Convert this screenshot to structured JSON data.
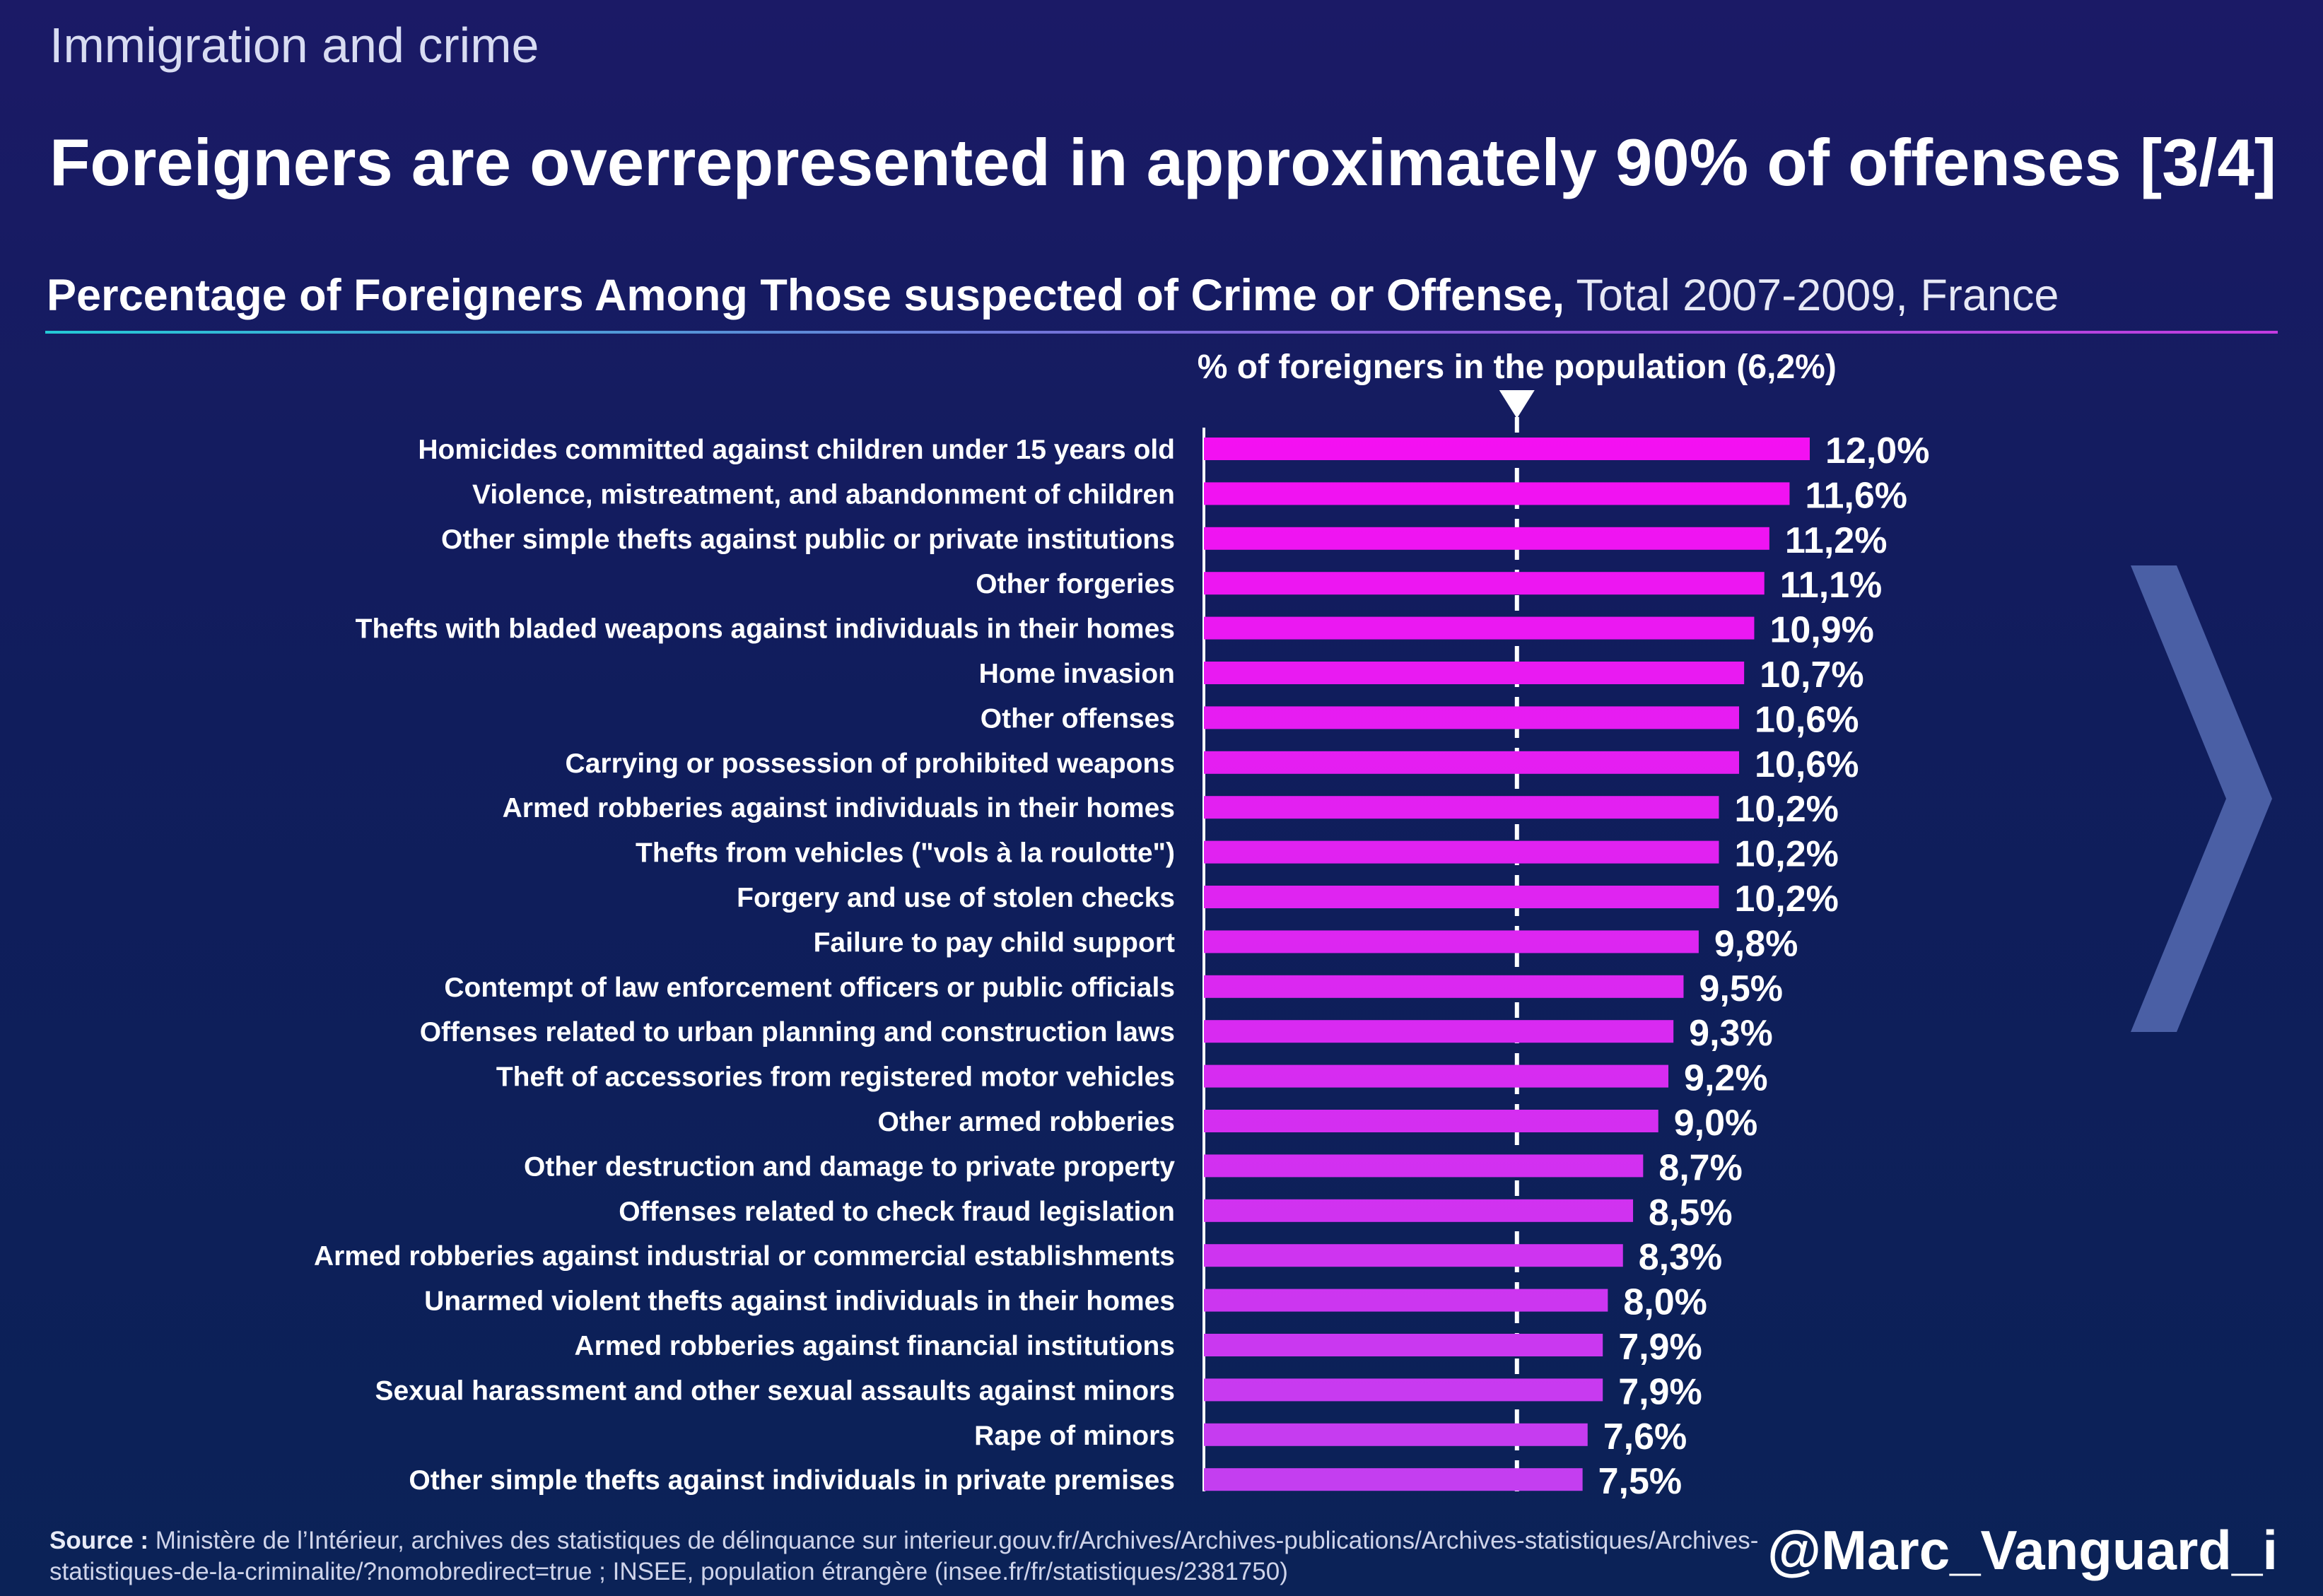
{
  "header": {
    "topic": "Immigration and crime",
    "headline": "Foreigners are overrepresented in approximately 90% of offenses [3/4]",
    "subtitle_bold": "Percentage of Foreigners Among Those suspected of Crime or Offense,",
    "subtitle_light": "Total 2007-2009, France"
  },
  "footer": {
    "source_label": "Source :",
    "source_text": "Ministère de l’Intérieur, archives des statistiques de délinquance sur interieur.gouv.fr/Archives/Archives-publications/Archives-statistiques/Archives-statistiques-de-la-criminalite/?nomobredirect=true ; INSEE, population étrangère (insee.fr/fr/statistiques/2381750)",
    "handle": "@Marc_Vanguard_i"
  },
  "icons": {
    "next": "chevron-right-icon",
    "marker": "triangle-down-icon"
  },
  "colors": {
    "bar_top": "#f40ff2",
    "bar_bottom": "#c43ef0",
    "arrow": "#4a5fa5"
  },
  "chart_data": {
    "type": "bar",
    "orientation": "horizontal",
    "unit": "%",
    "xlim": [
      0,
      12.0
    ],
    "reference": {
      "label": "% of foreigners in the population (6,2%)",
      "value": 6.2
    },
    "categories": [
      "Homicides committed against children under 15 years old",
      "Violence, mistreatment, and abandonment of children",
      "Other simple thefts against public or private institutions",
      "Other forgeries",
      "Thefts with bladed weapons against individuals in their homes",
      "Home invasion",
      "Other offenses",
      "Carrying or possession of prohibited weapons",
      "Armed robberies against individuals in their homes",
      "Thefts from vehicles (\"vols à la roulotte\")",
      "Forgery and use of stolen checks",
      "Failure to pay child support",
      "Contempt of law enforcement officers or public officials",
      "Offenses related to urban planning and construction laws",
      "Theft of accessories from registered motor vehicles",
      "Other armed robberies",
      "Other destruction and damage to private property",
      "Offenses related to check fraud legislation",
      "Armed robberies against industrial or commercial establishments",
      "Unarmed violent thefts against individuals in their homes",
      "Armed robberies against financial institutions",
      "Sexual harassment and other sexual assaults against minors",
      "Rape of minors",
      "Other simple thefts against individuals in private premises"
    ],
    "values": [
      12.0,
      11.6,
      11.2,
      11.1,
      10.9,
      10.7,
      10.6,
      10.6,
      10.2,
      10.2,
      10.2,
      9.8,
      9.5,
      9.3,
      9.2,
      9.0,
      8.7,
      8.5,
      8.3,
      8.0,
      7.9,
      7.9,
      7.6,
      7.5
    ],
    "value_labels": [
      "12,0%",
      "11,6%",
      "11,2%",
      "11,1%",
      "10,9%",
      "10,7%",
      "10,6%",
      "10,6%",
      "10,2%",
      "10,2%",
      "10,2%",
      "9,8%",
      "9,5%",
      "9,3%",
      "9,2%",
      "9,0%",
      "8,7%",
      "8,5%",
      "8,3%",
      "8,0%",
      "7,9%",
      "7,9%",
      "7,6%",
      "7,5%"
    ]
  }
}
